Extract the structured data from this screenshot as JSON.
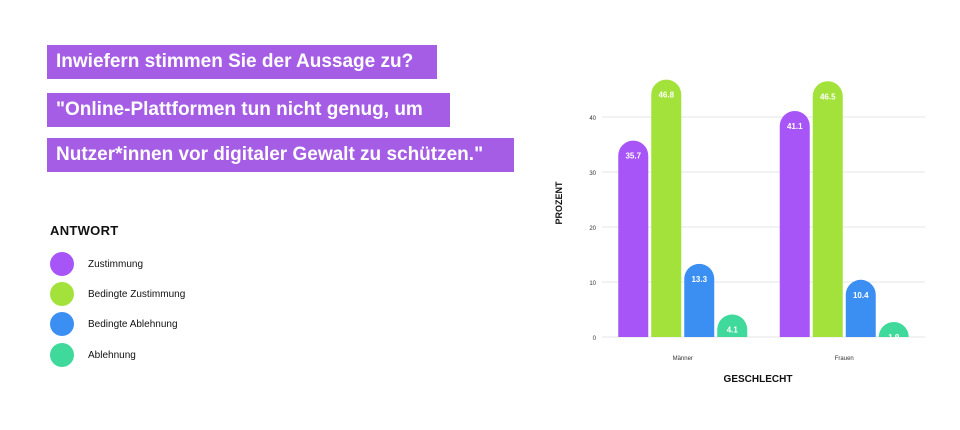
{
  "title_lines": [
    "Inwiefern stimmen Sie der Aussage zu?",
    "\"Online-Plattformen tun nicht genug, um",
    "Nutzer*innen vor digitaler Gewalt zu schützen.\""
  ],
  "legend": {
    "title": "ANTWORT",
    "items": [
      {
        "label": "Zustimmung",
        "color": "#a855f7"
      },
      {
        "label": "Bedingte Zustimmung",
        "color": "#a3e23a"
      },
      {
        "label": "Bedingte Ablehnung",
        "color": "#3b8ff3"
      },
      {
        "label": "Ablehnung",
        "color": "#3fd99b"
      }
    ]
  },
  "chart_data": {
    "type": "bar",
    "categories": [
      "Männer",
      "Frauen"
    ],
    "series": [
      {
        "name": "Zustimmung",
        "color": "#a855f7",
        "values": [
          35.7,
          41.1
        ]
      },
      {
        "name": "Bedingte Zustimmung",
        "color": "#a3e23a",
        "values": [
          46.8,
          46.5
        ]
      },
      {
        "name": "Bedingte Ablehnung",
        "color": "#3b8ff3",
        "values": [
          13.3,
          10.4
        ]
      },
      {
        "name": "Ablehnung",
        "color": "#3fd99b",
        "values": [
          4.1,
          1.9
        ]
      }
    ],
    "xlabel": "GESCHLECHT",
    "ylabel": "PROZENT",
    "ylim": [
      0,
      50
    ],
    "yticks": [
      0,
      10,
      20,
      30,
      40
    ],
    "grid": true,
    "legend_position": "left"
  }
}
